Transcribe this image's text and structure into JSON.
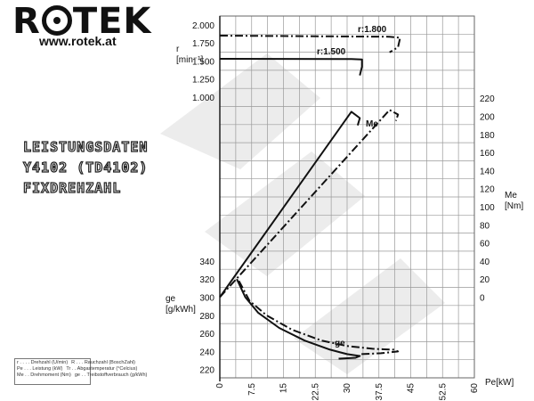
{
  "brand": {
    "name": "ROTEK",
    "url": "www.rotek.at"
  },
  "title_lines": [
    "LEISTUNGSDATEN",
    "Y4102 (TD4102)",
    "FIXDREHZAHL"
  ],
  "legend": [
    [
      "r . . . . Drehzahl (U/min)",
      "R . . . Rauchzahl (BoschZahl)"
    ],
    [
      "Pe . . . Leistung (kW)",
      "Tr . . Abgastemperatur (°Celcius)"
    ],
    [
      "Me . . Drehmoment (Nm)",
      "ge . . Treibstoffverbrauch (g/kWh)"
    ]
  ],
  "colors": {
    "line": "#111111",
    "grid": "#9a9a9a",
    "watermark": "#ececec"
  },
  "chart_data": {
    "type": "line",
    "x_axis": {
      "label": "Pe[kW]",
      "min": 0,
      "max": 60,
      "ticks": [
        "0",
        "7.5",
        "15",
        "22.5",
        "30",
        "37.5",
        "45",
        "52.5",
        "60"
      ]
    },
    "y_left_speed": {
      "label_lines": [
        "r",
        "[min⁻¹]"
      ],
      "ticks": [
        "2.000",
        "1.750",
        "1.500",
        "1.250",
        "1.000"
      ],
      "range": [
        1000,
        2000
      ]
    },
    "y_left_ge": {
      "label_lines": [
        "ge",
        "[g/kWh]"
      ],
      "ticks": [
        "340",
        "320",
        "300",
        "280",
        "260",
        "240",
        "220"
      ],
      "range": [
        220,
        340
      ]
    },
    "y_right_torque": {
      "label_lines": [
        "Me",
        "[Nm]"
      ],
      "ticks": [
        "220",
        "200",
        "180",
        "160",
        "140",
        "120",
        "100",
        "80",
        "60",
        "40",
        "20",
        "0"
      ],
      "range": [
        0,
        220
      ]
    },
    "curve_labels": {
      "r1800": "r:1.800",
      "r1500": "r:1.500",
      "me": "Me",
      "ge": "ge"
    },
    "series": [
      {
        "group": "r",
        "rpm": 1500,
        "style": "solid",
        "points": [
          [
            0,
            1530
          ],
          [
            31,
            1526
          ],
          [
            33.5,
            1520
          ],
          [
            33.5,
            1420
          ],
          [
            33,
            1300
          ]
        ]
      },
      {
        "group": "r",
        "rpm": 1800,
        "style": "dashdot",
        "points": [
          [
            0,
            1850
          ],
          [
            40,
            1835
          ],
          [
            42.5,
            1820
          ],
          [
            42,
            1690
          ],
          [
            40,
            1620
          ]
        ]
      },
      {
        "group": "Me",
        "rpm": 1500,
        "style": "solid",
        "points": [
          [
            0,
            0
          ],
          [
            31,
            205
          ],
          [
            33,
            198
          ],
          [
            32.5,
            190
          ]
        ]
      },
      {
        "group": "Me",
        "rpm": 1800,
        "style": "dashdot",
        "points": [
          [
            0,
            0
          ],
          [
            40,
            207
          ],
          [
            42,
            202
          ],
          [
            41.5,
            195
          ]
        ]
      },
      {
        "group": "ge",
        "rpm": 1500,
        "style": "solid",
        "points": [
          [
            4,
            320
          ],
          [
            6,
            300
          ],
          [
            9,
            283
          ],
          [
            14,
            266
          ],
          [
            20,
            252
          ],
          [
            26,
            242
          ],
          [
            30,
            237
          ],
          [
            33,
            235
          ],
          [
            32,
            233
          ],
          [
            28,
            232
          ]
        ]
      },
      {
        "group": "ge",
        "rpm": 1800,
        "style": "dashdot",
        "points": [
          [
            4.5,
            318
          ],
          [
            7,
            296
          ],
          [
            11,
            280
          ],
          [
            17,
            264
          ],
          [
            24,
            252
          ],
          [
            30,
            246
          ],
          [
            36,
            243
          ],
          [
            41,
            242
          ],
          [
            42,
            240
          ],
          [
            38,
            238
          ],
          [
            33,
            237
          ]
        ]
      }
    ]
  }
}
